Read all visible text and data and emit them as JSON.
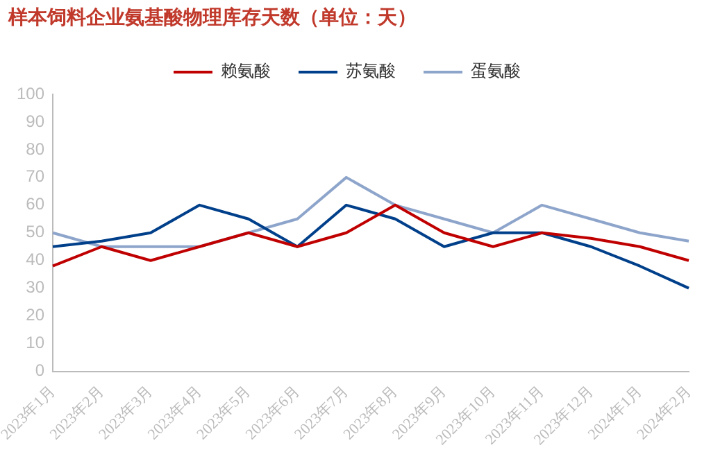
{
  "chart_data": {
    "type": "line",
    "title": "样本饲料企业氨基酸物理库存天数（单位：天）",
    "categories": [
      "2023年1月",
      "2023年2月",
      "2023年3月",
      "2023年4月",
      "2023年5月",
      "2023年6月",
      "2023年7月",
      "2023年8月",
      "2023年9月",
      "2023年10月",
      "2023年11月",
      "2023年12月",
      "2024年1月",
      "2024年2月"
    ],
    "series": [
      {
        "name": "赖氨酸",
        "color": "#c00000",
        "values": [
          38,
          45,
          40,
          45,
          50,
          45,
          50,
          60,
          50,
          45,
          50,
          48,
          45,
          40
        ]
      },
      {
        "name": "苏氨酸",
        "color": "#003f8a",
        "values": [
          45,
          47,
          50,
          60,
          55,
          45,
          60,
          55,
          45,
          50,
          50,
          45,
          38,
          30
        ]
      },
      {
        "name": "蛋氨酸",
        "color": "#8ea5cb",
        "values": [
          50,
          45,
          45,
          45,
          50,
          55,
          70,
          60,
          55,
          50,
          60,
          55,
          50,
          47
        ]
      }
    ],
    "ylim": [
      0,
      100
    ],
    "yticks": [
      0,
      10,
      20,
      30,
      40,
      50,
      60,
      70,
      80,
      90,
      100
    ],
    "grid": false,
    "legend": "top",
    "marker": "none",
    "line_style": "solid"
  }
}
